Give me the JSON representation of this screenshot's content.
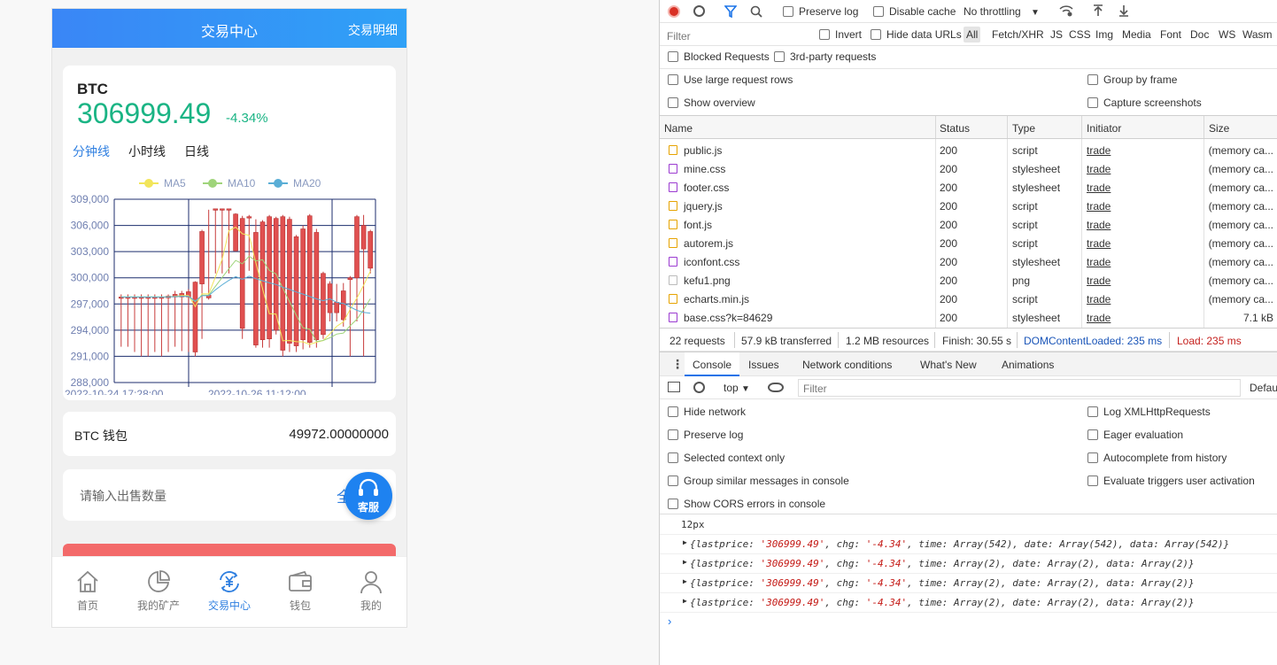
{
  "app": {
    "header_title": "交易中心",
    "header_right": "交易明细",
    "symbol": "BTC",
    "price": "306999.49",
    "change": "-4.34%",
    "tabs": [
      "分钟线",
      "小时线",
      "日线"
    ],
    "wallet_label": "BTC 钱包",
    "wallet_value": "49972.00000000",
    "sell_placeholder": "请输入出售数量",
    "sell_all": "全",
    "service_label": "客服",
    "nav": [
      "首页",
      "我的矿产",
      "交易中心",
      "钱包",
      "我的"
    ],
    "colors": {
      "accent": "#2f7fe0",
      "up": "#1ab484",
      "candle": "#e05050"
    }
  },
  "chart_data": {
    "type": "candlestick",
    "legend": [
      "MA5",
      "MA10",
      "MA20"
    ],
    "legend_colors": [
      "#f2e55a",
      "#9fd47a",
      "#5aaed6"
    ],
    "y_ticks": [
      "309,000",
      "306,000",
      "303,000",
      "300,000",
      "297,000",
      "294,000",
      "291,000",
      "288,000"
    ],
    "ylim": [
      288000,
      309000
    ],
    "x_labels": [
      "2022-10-24 17:28:00",
      "2022-10-26 11:12:00"
    ],
    "candles": [
      [
        297700,
        297800,
        298100,
        292100
      ],
      [
        297700,
        297800,
        298100,
        292100
      ],
      [
        297700,
        297800,
        298100,
        291500
      ],
      [
        297700,
        297800,
        298100,
        291000
      ],
      [
        297700,
        297800,
        298100,
        291000
      ],
      [
        297700,
        297800,
        298100,
        291500
      ],
      [
        297700,
        297800,
        298100,
        291000
      ],
      [
        297700,
        297900,
        298100,
        291500
      ],
      [
        297800,
        298100,
        298500,
        292100
      ],
      [
        297800,
        298200,
        298500,
        291600
      ],
      [
        298400,
        297800,
        298700,
        291500
      ],
      [
        299500,
        291500,
        299600,
        291000
      ],
      [
        299300,
        305300,
        305500,
        293000
      ],
      [
        297700,
        298000,
        307800,
        297500
      ],
      [
        307800,
        307900,
        307900,
        300500
      ],
      [
        307800,
        307900,
        307900,
        300500
      ],
      [
        307800,
        307900,
        307900,
        300500
      ],
      [
        303100,
        307300,
        307400,
        303000
      ],
      [
        306800,
        294200,
        307100,
        293000
      ],
      [
        307000,
        307000,
        307200,
        300800
      ],
      [
        305200,
        292300,
        306700,
        292000
      ],
      [
        306400,
        292900,
        306600,
        292000
      ],
      [
        307000,
        293000,
        307200,
        292000
      ],
      [
        306800,
        294000,
        307000,
        293500
      ],
      [
        307000,
        291700,
        307200,
        291000
      ],
      [
        306700,
        292500,
        307000,
        291500
      ],
      [
        304700,
        292200,
        304900,
        291500
      ],
      [
        305600,
        292900,
        306000,
        291800
      ],
      [
        307100,
        292600,
        307300,
        292000
      ],
      [
        305200,
        292900,
        305600,
        292000
      ],
      [
        300500,
        293500,
        300700,
        293000
      ],
      [
        299300,
        296000,
        299600,
        295000
      ],
      [
        296000,
        297200,
        299300,
        295000
      ],
      [
        298500,
        295200,
        299400,
        294400
      ],
      [
        299800,
        300000,
        300200,
        291000
      ],
      [
        307000,
        300000,
        307200,
        295000
      ],
      [
        306000,
        303300,
        307200,
        291000
      ],
      [
        301100,
        305300,
        305500,
        300500
      ]
    ]
  },
  "devtools": {
    "toolbar": {
      "preserve_log": "Preserve log",
      "disable_cache": "Disable cache",
      "throttling": "No throttling"
    },
    "filter_placeholder": "Filter",
    "filter_opts": {
      "invert": "Invert",
      "hide_data_urls": "Hide data URLs"
    },
    "type_filters": [
      "All",
      "Fetch/XHR",
      "JS",
      "CSS",
      "Img",
      "Media",
      "Font",
      "Doc",
      "WS",
      "Wasm"
    ],
    "checks": {
      "blocked": "Blocked Requests",
      "third_party": "3rd-party requests",
      "large_rows": "Use large request rows",
      "group_frame": "Group by frame",
      "overview": "Show overview",
      "capture": "Capture screenshots"
    },
    "columns": [
      "Name",
      "Status",
      "Type",
      "Initiator",
      "Size"
    ],
    "requests": [
      {
        "name": "public.js",
        "status": "200",
        "type": "script",
        "initiator": "trade",
        "size": "(memory ca...",
        "kind": "js"
      },
      {
        "name": "mine.css",
        "status": "200",
        "type": "stylesheet",
        "initiator": "trade",
        "size": "(memory ca...",
        "kind": "css"
      },
      {
        "name": "footer.css",
        "status": "200",
        "type": "stylesheet",
        "initiator": "trade",
        "size": "(memory ca...",
        "kind": "css"
      },
      {
        "name": "jquery.js",
        "status": "200",
        "type": "script",
        "initiator": "trade",
        "size": "(memory ca...",
        "kind": "js"
      },
      {
        "name": "font.js",
        "status": "200",
        "type": "script",
        "initiator": "trade",
        "size": "(memory ca...",
        "kind": "js"
      },
      {
        "name": "autorem.js",
        "status": "200",
        "type": "script",
        "initiator": "trade",
        "size": "(memory ca...",
        "kind": "js"
      },
      {
        "name": "iconfont.css",
        "status": "200",
        "type": "stylesheet",
        "initiator": "trade",
        "size": "(memory ca...",
        "kind": "css"
      },
      {
        "name": "kefu1.png",
        "status": "200",
        "type": "png",
        "initiator": "trade",
        "size": "(memory ca...",
        "kind": "png"
      },
      {
        "name": "echarts.min.js",
        "status": "200",
        "type": "script",
        "initiator": "trade",
        "size": "(memory ca...",
        "kind": "js"
      },
      {
        "name": "base.css?k=84629",
        "status": "200",
        "type": "stylesheet",
        "initiator": "trade",
        "size": "7.1 kB",
        "kind": "css"
      }
    ],
    "summary": {
      "requests": "22 requests",
      "transferred": "57.9 kB transferred",
      "resources": "1.2 MB resources",
      "finish": "Finish: 30.55 s",
      "dcl": "DOMContentLoaded: 235 ms",
      "load": "Load: 235 ms"
    },
    "drawer_tabs": [
      "Console",
      "Issues",
      "Network conditions",
      "What's New",
      "Animations"
    ],
    "console": {
      "context": "top",
      "filter_placeholder": "Filter",
      "levels": "Defau",
      "settings_left": [
        "Hide network",
        "Preserve log",
        "Selected context only",
        "Group similar messages in console",
        "Show CORS errors in console"
      ],
      "settings_right": [
        "Log XMLHttpRequests",
        "Eager evaluation",
        "Autocomplete from history",
        "Evaluate triggers user activation"
      ],
      "messages": [
        {
          "plain": "12px"
        },
        {
          "pre": "{lastprice: ",
          "price": "'306999.49'",
          "mid": ", chg: ",
          "chg": "'-4.34'",
          "rest": ", time: Array(542), date: Array(542), data: Array(542)}"
        },
        {
          "pre": "{lastprice: ",
          "price": "'306999.49'",
          "mid": ", chg: ",
          "chg": "'-4.34'",
          "rest": ", time: Array(2), date: Array(2), data: Array(2)}"
        },
        {
          "pre": "{lastprice: ",
          "price": "'306999.49'",
          "mid": ", chg: ",
          "chg": "'-4.34'",
          "rest": ", time: Array(2), date: Array(2), data: Array(2)}"
        },
        {
          "pre": "{lastprice: ",
          "price": "'306999.49'",
          "mid": ", chg: ",
          "chg": "'-4.34'",
          "rest": ", time: Array(2), date: Array(2), data: Array(2)}"
        }
      ]
    }
  }
}
